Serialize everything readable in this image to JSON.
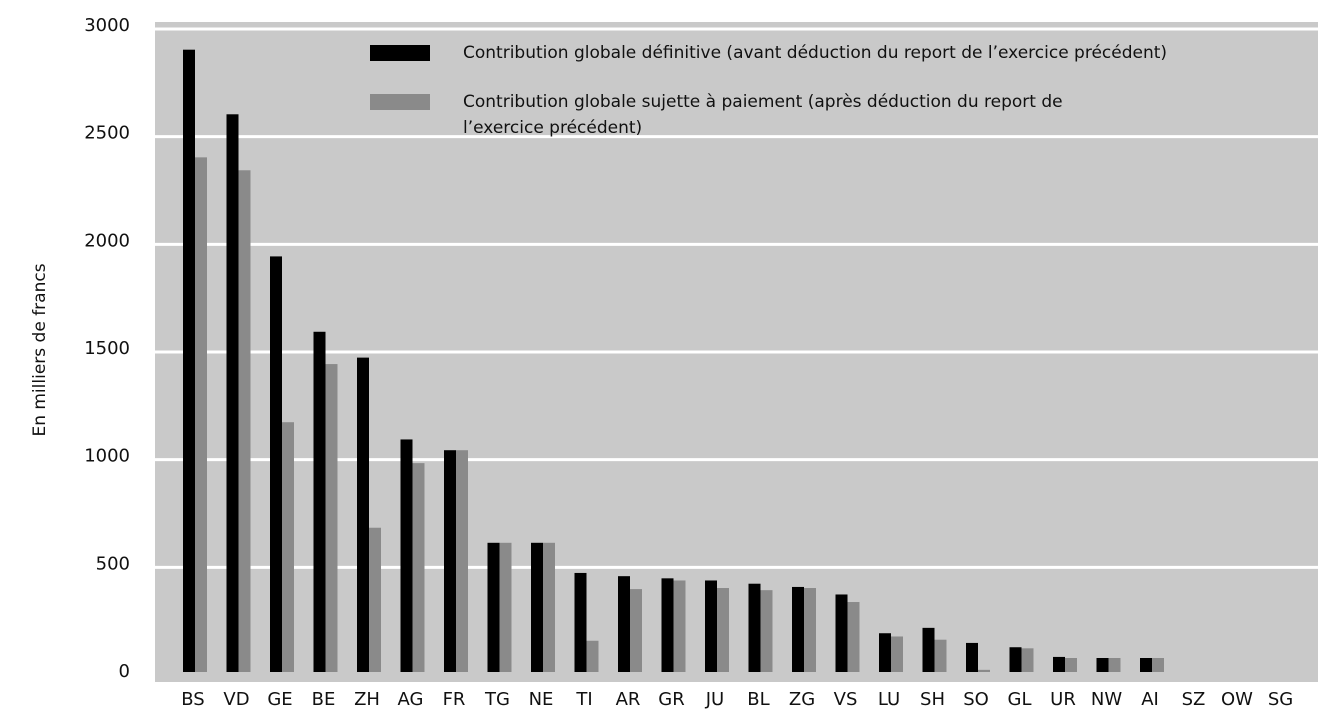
{
  "chart_data": {
    "type": "bar",
    "y_label": "En milliers de francs",
    "categories": [
      "BS",
      "VD",
      "GE",
      "BE",
      "ZH",
      "AG",
      "FR",
      "TG",
      "NE",
      "TI",
      "AR",
      "GR",
      "JU",
      "BL",
      "ZG",
      "VS",
      "LU",
      "SH",
      "SO",
      "GL",
      "UR",
      "NW",
      "AI",
      "SZ",
      "OW",
      "SG"
    ],
    "series": [
      {
        "name": "Contribution globale définitive (avant déduction du report de l’exercice précédent)",
        "color": "#000000",
        "values": [
          2890,
          2590,
          1930,
          1580,
          1460,
          1080,
          1030,
          600,
          600,
          460,
          445,
          435,
          425,
          410,
          395,
          360,
          180,
          205,
          135,
          115,
          70,
          65,
          65,
          0,
          0,
          0
        ]
      },
      {
        "name": "Contribution globale sujette à paiement (après déduction du report de l’exercice précédent)",
        "color": "#8a8a8a",
        "values": [
          2390,
          2330,
          1160,
          1430,
          670,
          970,
          1030,
          600,
          600,
          145,
          385,
          425,
          390,
          380,
          390,
          325,
          165,
          150,
          10,
          110,
          65,
          65,
          65,
          0,
          0,
          0
        ]
      }
    ],
    "ylim": [
      0,
      3000
    ],
    "yticks": [
      0,
      500,
      1000,
      1500,
      2000,
      2500,
      3000
    ],
    "grid": true
  }
}
